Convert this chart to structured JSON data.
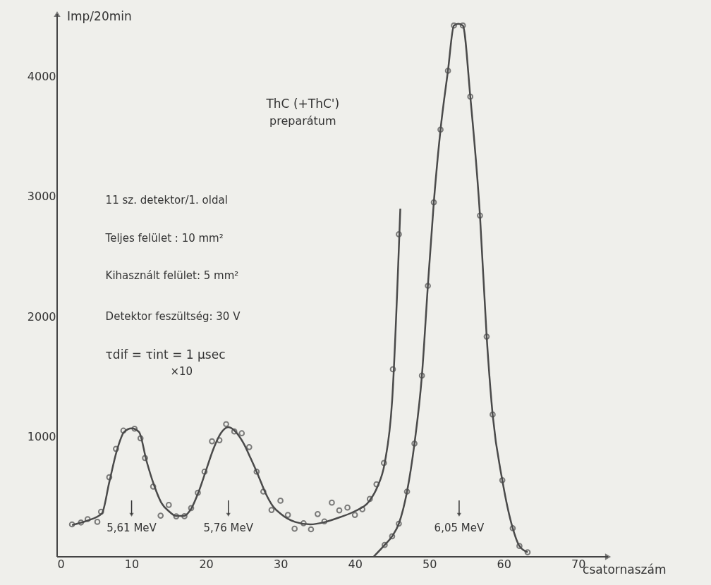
{
  "chart_data": {
    "type": "scatter",
    "xlabel": "csatornaszám",
    "ylabel": "Imp/20min",
    "xlim": [
      0,
      74
    ],
    "ylim": [
      0,
      4520
    ],
    "xticks": [
      0,
      10,
      20,
      30,
      40,
      50,
      60,
      70
    ],
    "yticks": [
      1000,
      2000,
      3000,
      4000
    ],
    "grid": false,
    "line_style": "solid",
    "annotations": [
      "ThC (+ThC')",
      "preparátum",
      "11 sz. detektor/1. oldal",
      "Teljes felület  :  10 mm²",
      "Kihasznált felület: 5 mm²",
      "Detektor feszültség: 30 V",
      "τdif = τint  =  1 µsec",
      "×10",
      "5,61 MeV",
      "5,76 MeV",
      "6,05 MeV"
    ],
    "series": [
      {
        "marker": "circle",
        "color": "#4a4a4a",
        "x": [
          2.0,
          3.2,
          4.1,
          5.4,
          5.9,
          7.0,
          7.9,
          8.9,
          10.4,
          11.2,
          11.8,
          12.9,
          13.9,
          15.0,
          16.0,
          17.1,
          18.0,
          18.9,
          19.8,
          20.8,
          21.8,
          22.7,
          23.8,
          24.8,
          25.8,
          26.8,
          27.7,
          28.8,
          30.0,
          31.0,
          31.9,
          33.1,
          34.1,
          35.0,
          35.9,
          36.9,
          37.9,
          39.0,
          40.0,
          41.0,
          42.0,
          42.9,
          43.9,
          45.1,
          45.9
        ],
        "values": [
          270,
          286,
          314,
          291,
          375,
          663,
          899,
          1051,
          1067,
          987,
          823,
          585,
          343,
          432,
          337,
          338,
          406,
          533,
          709,
          962,
          971,
          1105,
          1044,
          1029,
          914,
          709,
          543,
          390,
          467,
          349,
          234,
          280,
          229,
          356,
          295,
          451,
          387,
          410,
          349,
          396,
          482,
          604,
          781,
          1562,
          2686
        ]
      },
      {
        "type": "line",
        "marker": "none",
        "color": "#4a4a4a",
        "x": [
          2,
          4,
          6,
          7,
          8,
          9,
          10,
          11,
          12,
          13,
          14,
          15,
          16,
          17,
          18,
          19,
          20,
          21,
          22,
          23,
          24,
          25,
          26,
          27,
          28,
          29,
          30,
          32,
          34,
          36,
          38,
          40,
          42,
          43,
          44,
          45,
          46.1
        ],
        "values": [
          265,
          300,
          360,
          620,
          880,
          1040,
          1070,
          1040,
          800,
          600,
          450,
          380,
          340,
          340,
          400,
          540,
          720,
          900,
          1030,
          1080,
          1040,
          950,
          820,
          680,
          530,
          420,
          360,
          290,
          270,
          290,
          330,
          380,
          470,
          580,
          780,
          1300,
          2900
        ]
      },
      {
        "marker": "circle",
        "color": "#4a4a4a",
        "x": [
          44.0,
          45.0,
          45.9,
          47.0,
          48.0,
          49.0,
          49.8,
          50.6,
          51.5,
          52.5,
          53.3,
          54.5,
          55.5,
          56.8,
          57.7,
          58.5,
          59.8,
          61.2,
          62.1,
          63.2
        ],
        "values": [
          99,
          171,
          276,
          543,
          943,
          1509,
          2257,
          2952,
          3558,
          4048,
          4425,
          4425,
          3832,
          2842,
          1834,
          1185,
          638,
          238,
          90,
          38
        ]
      },
      {
        "type": "line",
        "marker": "none",
        "color": "#4a4a4a",
        "x": [
          42.5,
          44.0,
          45.0,
          45.9,
          47.0,
          48.0,
          49.0,
          49.8,
          50.6,
          51.5,
          52.5,
          53.3,
          53.9,
          54.5,
          55.5,
          56.8,
          57.7,
          58.5,
          59.8,
          61.2,
          62.1,
          63.2
        ],
        "values": [
          0,
          99,
          171,
          276,
          543,
          943,
          1509,
          2257,
          2952,
          3558,
          4048,
          4425,
          4440,
          4425,
          3832,
          2842,
          1834,
          1185,
          638,
          238,
          90,
          38
        ]
      }
    ]
  }
}
